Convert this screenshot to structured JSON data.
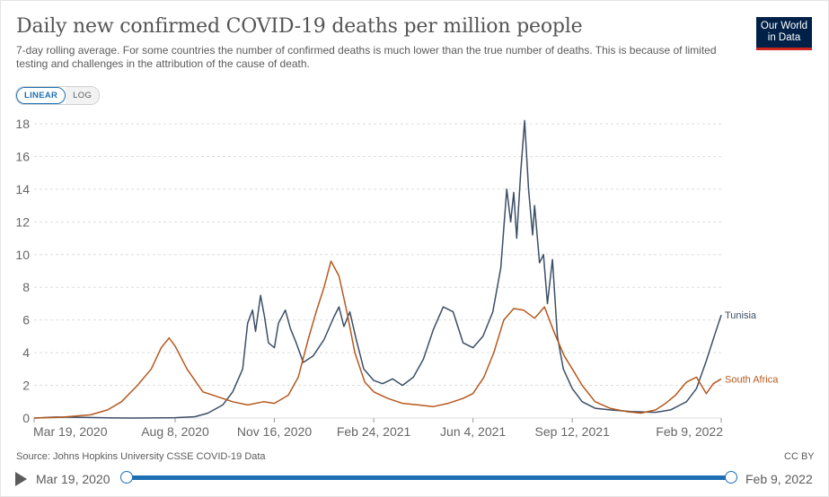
{
  "header": {
    "title": "Daily new confirmed COVID-19 deaths per million people",
    "subtitle": "7-day rolling average. For some countries the number of confirmed deaths is much lower than the true number of deaths. This is because of limited testing and challenges in the attribution of the cause of death.",
    "logo_line1": "Our World",
    "logo_line2": "in Data"
  },
  "controls": {
    "linear_label": "LINEAR",
    "log_label": "LOG",
    "active_scale": "linear"
  },
  "footer": {
    "source": "Source: Johns Hopkins University CSSE COVID-19 Data",
    "license": "CC BY"
  },
  "timeline": {
    "start_label": "Mar 19, 2020",
    "end_label": "Feb 9, 2022"
  },
  "colors": {
    "tunisia": "#3c4e66",
    "south_africa": "#b6581d",
    "grid": "#dddddd",
    "axis_text": "#666666",
    "accent": "#1d6fb5"
  },
  "chart_data": {
    "type": "line",
    "title": "Daily new confirmed COVID-19 deaths per million people",
    "ylim": [
      0,
      18
    ],
    "y_ticks": [
      0,
      2,
      4,
      6,
      8,
      10,
      12,
      14,
      16,
      18
    ],
    "x_range": [
      "2020-03-19",
      "2022-02-09"
    ],
    "x_ticks": [
      {
        "date": "2020-03-19",
        "label": "Mar 19, 2020"
      },
      {
        "date": "2020-08-08",
        "label": "Aug 8, 2020"
      },
      {
        "date": "2020-11-16",
        "label": "Nov 16, 2020"
      },
      {
        "date": "2021-02-24",
        "label": "Feb 24, 2021"
      },
      {
        "date": "2021-06-04",
        "label": "Jun 4, 2021"
      },
      {
        "date": "2021-09-12",
        "label": "Sep 12, 2021"
      },
      {
        "date": "2022-02-09",
        "label": "Feb 9, 2022"
      }
    ],
    "grid": "horizontal dashed",
    "legend": "inline labels at line ends",
    "series": [
      {
        "name": "Tunisia",
        "color": "#3c4e66",
        "points": [
          [
            "2020-03-19",
            0.0
          ],
          [
            "2020-04-10",
            0.06
          ],
          [
            "2020-05-01",
            0.05
          ],
          [
            "2020-06-01",
            0.01
          ],
          [
            "2020-07-01",
            0.0
          ],
          [
            "2020-08-08",
            0.02
          ],
          [
            "2020-08-28",
            0.08
          ],
          [
            "2020-09-10",
            0.3
          ],
          [
            "2020-09-25",
            0.8
          ],
          [
            "2020-10-05",
            1.6
          ],
          [
            "2020-10-15",
            3.0
          ],
          [
            "2020-10-20",
            5.8
          ],
          [
            "2020-10-25",
            6.6
          ],
          [
            "2020-10-28",
            5.3
          ],
          [
            "2020-11-02",
            7.5
          ],
          [
            "2020-11-06",
            6.2
          ],
          [
            "2020-11-10",
            4.6
          ],
          [
            "2020-11-16",
            4.3
          ],
          [
            "2020-11-20",
            5.8
          ],
          [
            "2020-11-27",
            6.6
          ],
          [
            "2020-12-02",
            5.5
          ],
          [
            "2020-12-08",
            4.6
          ],
          [
            "2020-12-15",
            3.4
          ],
          [
            "2020-12-25",
            3.8
          ],
          [
            "2021-01-05",
            4.8
          ],
          [
            "2021-01-15",
            6.2
          ],
          [
            "2021-01-20",
            6.8
          ],
          [
            "2021-01-25",
            5.6
          ],
          [
            "2021-01-31",
            6.5
          ],
          [
            "2021-02-06",
            4.9
          ],
          [
            "2021-02-14",
            3.0
          ],
          [
            "2021-02-24",
            2.3
          ],
          [
            "2021-03-05",
            2.1
          ],
          [
            "2021-03-15",
            2.4
          ],
          [
            "2021-03-25",
            2.0
          ],
          [
            "2021-04-05",
            2.5
          ],
          [
            "2021-04-15",
            3.6
          ],
          [
            "2021-04-25",
            5.4
          ],
          [
            "2021-05-05",
            6.8
          ],
          [
            "2021-05-15",
            6.5
          ],
          [
            "2021-05-25",
            4.6
          ],
          [
            "2021-06-04",
            4.3
          ],
          [
            "2021-06-14",
            5.0
          ],
          [
            "2021-06-24",
            6.5
          ],
          [
            "2021-07-02",
            9.2
          ],
          [
            "2021-07-08",
            14.0
          ],
          [
            "2021-07-12",
            12.0
          ],
          [
            "2021-07-15",
            13.8
          ],
          [
            "2021-07-18",
            11.0
          ],
          [
            "2021-07-22",
            15.0
          ],
          [
            "2021-07-26",
            18.2
          ],
          [
            "2021-07-30",
            14.0
          ],
          [
            "2021-08-03",
            11.2
          ],
          [
            "2021-08-05",
            13.0
          ],
          [
            "2021-08-10",
            9.5
          ],
          [
            "2021-08-14",
            10.0
          ],
          [
            "2021-08-18",
            7.0
          ],
          [
            "2021-08-23",
            9.7
          ],
          [
            "2021-08-28",
            5.0
          ],
          [
            "2021-09-03",
            3.0
          ],
          [
            "2021-09-12",
            1.8
          ],
          [
            "2021-09-22",
            1.0
          ],
          [
            "2021-10-05",
            0.6
          ],
          [
            "2021-10-20",
            0.5
          ],
          [
            "2021-11-10",
            0.4
          ],
          [
            "2021-12-05",
            0.35
          ],
          [
            "2021-12-20",
            0.5
          ],
          [
            "2022-01-05",
            1.0
          ],
          [
            "2022-01-15",
            1.8
          ],
          [
            "2022-01-25",
            3.5
          ],
          [
            "2022-02-03",
            5.2
          ],
          [
            "2022-02-09",
            6.3
          ]
        ]
      },
      {
        "name": "South Africa",
        "color": "#b6581d",
        "points": [
          [
            "2020-03-19",
            0.0
          ],
          [
            "2020-04-15",
            0.05
          ],
          [
            "2020-05-15",
            0.2
          ],
          [
            "2020-06-01",
            0.5
          ],
          [
            "2020-06-15",
            1.0
          ],
          [
            "2020-07-01",
            2.0
          ],
          [
            "2020-07-15",
            3.0
          ],
          [
            "2020-07-25",
            4.3
          ],
          [
            "2020-08-02",
            4.9
          ],
          [
            "2020-08-08",
            4.4
          ],
          [
            "2020-08-20",
            3.0
          ],
          [
            "2020-09-05",
            1.6
          ],
          [
            "2020-09-20",
            1.3
          ],
          [
            "2020-10-05",
            1.0
          ],
          [
            "2020-10-20",
            0.8
          ],
          [
            "2020-11-05",
            1.0
          ],
          [
            "2020-11-16",
            0.9
          ],
          [
            "2020-11-30",
            1.4
          ],
          [
            "2020-12-10",
            2.5
          ],
          [
            "2020-12-20",
            4.8
          ],
          [
            "2020-12-28",
            6.5
          ],
          [
            "2021-01-05",
            8.0
          ],
          [
            "2021-01-12",
            9.6
          ],
          [
            "2021-01-20",
            8.7
          ],
          [
            "2021-01-28",
            6.5
          ],
          [
            "2021-02-05",
            4.0
          ],
          [
            "2021-02-15",
            2.2
          ],
          [
            "2021-02-24",
            1.6
          ],
          [
            "2021-03-10",
            1.2
          ],
          [
            "2021-03-25",
            0.9
          ],
          [
            "2021-04-10",
            0.8
          ],
          [
            "2021-04-25",
            0.7
          ],
          [
            "2021-05-10",
            0.9
          ],
          [
            "2021-05-25",
            1.2
          ],
          [
            "2021-06-04",
            1.5
          ],
          [
            "2021-06-15",
            2.5
          ],
          [
            "2021-06-25",
            4.0
          ],
          [
            "2021-07-05",
            6.0
          ],
          [
            "2021-07-15",
            6.7
          ],
          [
            "2021-07-25",
            6.6
          ],
          [
            "2021-08-05",
            6.1
          ],
          [
            "2021-08-15",
            6.8
          ],
          [
            "2021-08-25",
            5.2
          ],
          [
            "2021-09-04",
            3.8
          ],
          [
            "2021-09-12",
            3.0
          ],
          [
            "2021-09-22",
            2.0
          ],
          [
            "2021-10-05",
            1.0
          ],
          [
            "2021-10-20",
            0.6
          ],
          [
            "2021-11-05",
            0.4
          ],
          [
            "2021-11-20",
            0.3
          ],
          [
            "2021-12-05",
            0.5
          ],
          [
            "2021-12-15",
            0.9
          ],
          [
            "2021-12-25",
            1.4
          ],
          [
            "2022-01-05",
            2.2
          ],
          [
            "2022-01-15",
            2.5
          ],
          [
            "2022-01-25",
            1.5
          ],
          [
            "2022-02-01",
            2.1
          ],
          [
            "2022-02-09",
            2.4
          ]
        ]
      }
    ]
  }
}
